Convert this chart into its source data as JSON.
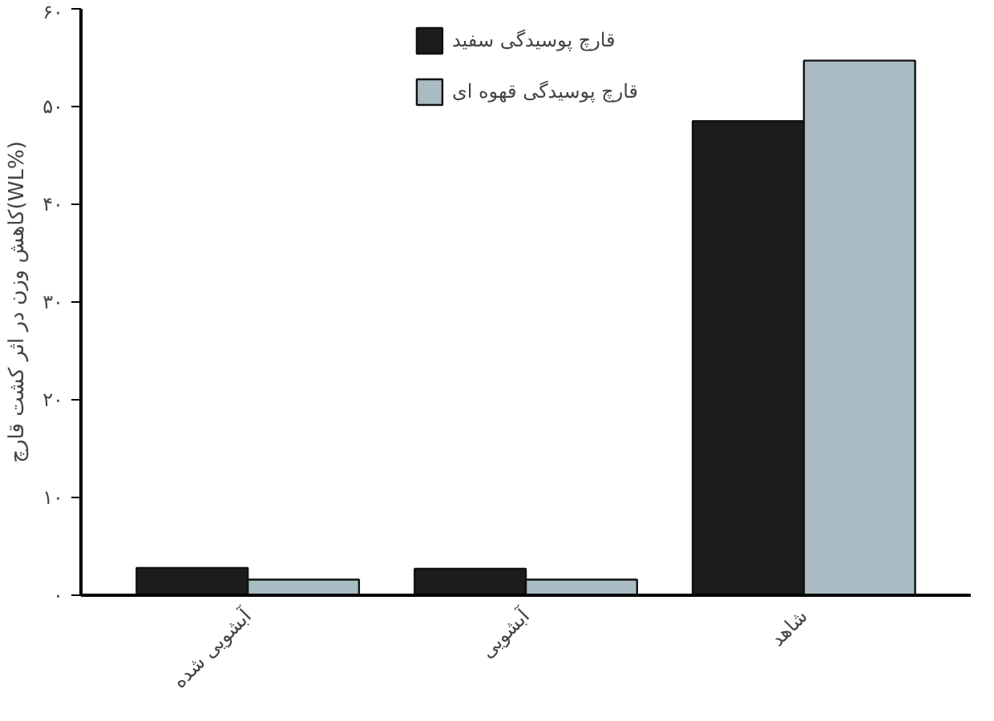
{
  "chart_data": {
    "type": "bar",
    "ylabel": "کاهش وزن در اثر کشت قارچ(WL%)",
    "categories": [
      "آبشویی شده",
      "آبشویی",
      "شاهد"
    ],
    "series": [
      {
        "name": "قارچ پوسیدگی سفید",
        "color": "#1c1c1c",
        "values": [
          2.8,
          2.7,
          48.5
        ]
      },
      {
        "name": "قارچ پوسیدگی قهوه ای",
        "color": "#a9bcc4",
        "values": [
          1.6,
          1.6,
          54.7
        ]
      }
    ],
    "ylim": [
      0,
      60
    ],
    "yticks": [
      {
        "value": 0,
        "label": "۰"
      },
      {
        "value": 10,
        "label": "۱۰"
      },
      {
        "value": 20,
        "label": "۲۰"
      },
      {
        "value": 30,
        "label": "۳۰"
      },
      {
        "value": 40,
        "label": "۴۰"
      },
      {
        "value": 50,
        "label": "۵۰"
      },
      {
        "value": 60,
        "label": "۶۰"
      }
    ],
    "grid": false,
    "legend": "top"
  }
}
